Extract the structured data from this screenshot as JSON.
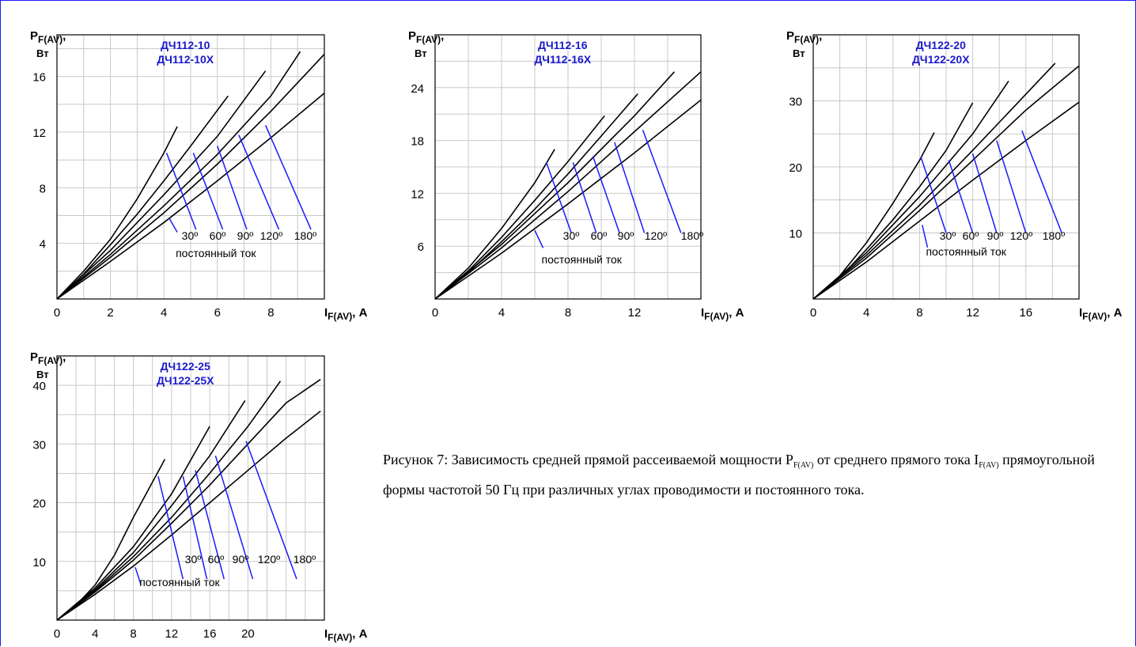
{
  "caption": {
    "text_1": "Рисунок 7: Зависимость средней прямой рассеиваемой мощности P",
    "sub_1": "F(AV)",
    "text_2": " от среднего прямого тока I",
    "sub_2": "F(AV)",
    "text_3": " прямоугольной формы частотой 50 Гц при различных углах проводимости и постоянного тока."
  },
  "chart_data": [
    {
      "type": "line",
      "title_lines": [
        "ДЧ112-10",
        "ДЧ112-10Х"
      ],
      "ylabel_main": "P",
      "ylabel_sub": "F(AV)",
      "ylabel_comma": ",",
      "ylabel_unit": "Вт",
      "xlabel_main": "I",
      "xlabel_sub": "F(AV)",
      "xlabel_unit": ", А",
      "xlim": [
        0,
        10
      ],
      "ylim": [
        0,
        19
      ],
      "xticks": [
        0,
        2,
        4,
        6,
        8
      ],
      "yticks": [
        4,
        8,
        12,
        16
      ],
      "grid": true,
      "angle_labels": [
        "30º",
        "60º",
        "90º",
        "120º",
        "180º"
      ],
      "dc_label": "постоянный ток",
      "series": [
        {
          "name": "30º",
          "x": [
            0,
            1,
            2,
            3,
            4,
            4.5
          ],
          "y": [
            0,
            2.0,
            4.3,
            7.2,
            10.5,
            12.4
          ]
        },
        {
          "name": "60º",
          "x": [
            0,
            1,
            2,
            3,
            4,
            5,
            6.4
          ],
          "y": [
            0,
            1.8,
            3.9,
            6.1,
            8.5,
            11.0,
            14.6
          ]
        },
        {
          "name": "90º",
          "x": [
            0,
            2,
            4,
            6,
            7.8
          ],
          "y": [
            0,
            3.5,
            7.5,
            11.7,
            16.4
          ]
        },
        {
          "name": "120º",
          "x": [
            0,
            2,
            4,
            6,
            8,
            9.1
          ],
          "y": [
            0,
            3.2,
            6.7,
            10.4,
            14.6,
            17.8
          ]
        },
        {
          "name": "180º",
          "x": [
            0,
            2,
            4,
            6,
            8,
            10
          ],
          "y": [
            0,
            3.0,
            6.2,
            9.7,
            13.5,
            17.6
          ]
        },
        {
          "name": "постоянный ток",
          "x": [
            0,
            2,
            4,
            6,
            8,
            10
          ],
          "y": [
            0,
            2.7,
            5.5,
            8.5,
            11.6,
            14.8
          ]
        }
      ],
      "pointers": [
        {
          "from": [
            4.1,
            10.5
          ],
          "to": [
            5.2,
            5.0
          ]
        },
        {
          "from": [
            5.1,
            10.5
          ],
          "to": [
            6.2,
            5.0
          ]
        },
        {
          "from": [
            6.0,
            11.0
          ],
          "to": [
            7.1,
            5.0
          ]
        },
        {
          "from": [
            6.8,
            11.8
          ],
          "to": [
            8.3,
            5.0
          ]
        },
        {
          "from": [
            7.8,
            12.5
          ],
          "to": [
            9.5,
            5.0
          ]
        },
        {
          "from": [
            4.2,
            5.8
          ],
          "to": [
            4.5,
            4.8
          ]
        }
      ]
    },
    {
      "type": "line",
      "title_lines": [
        "ДЧ112-16",
        "ДЧ112-16Х"
      ],
      "ylabel_main": "P",
      "ylabel_sub": "F(AV)",
      "ylabel_comma": ",",
      "ylabel_unit": "Вт",
      "xlabel_main": "I",
      "xlabel_sub": "F(AV)",
      "xlabel_unit": ", А",
      "xlim": [
        0,
        16
      ],
      "ylim": [
        0,
        30
      ],
      "xticks": [
        0,
        4,
        8,
        12
      ],
      "yticks": [
        6,
        12,
        18,
        24
      ],
      "grid": true,
      "angle_labels": [
        "30º",
        "60º",
        "90º",
        "120º",
        "180º"
      ],
      "dc_label": "постоянный ток",
      "series": [
        {
          "name": "30º",
          "x": [
            0,
            2,
            4,
            6,
            7.2
          ],
          "y": [
            0,
            3.5,
            8.0,
            13.2,
            17.0
          ]
        },
        {
          "name": "60º",
          "x": [
            0,
            2,
            4,
            6,
            8,
            10.2
          ],
          "y": [
            0,
            3.2,
            7.0,
            11.2,
            15.6,
            20.8
          ]
        },
        {
          "name": "90º",
          "x": [
            0,
            2,
            4,
            6,
            8,
            10,
            12.2
          ],
          "y": [
            0,
            3.0,
            6.5,
            10.2,
            14.2,
            18.5,
            23.3
          ]
        },
        {
          "name": "120º",
          "x": [
            0,
            4,
            8,
            12,
            14.4
          ],
          "y": [
            0,
            6.2,
            13.2,
            20.8,
            25.8
          ]
        },
        {
          "name": "180º",
          "x": [
            0,
            4,
            8,
            12,
            16
          ],
          "y": [
            0,
            5.8,
            12.2,
            19.0,
            25.8
          ]
        },
        {
          "name": "постоянный ток",
          "x": [
            0,
            4,
            8,
            12,
            16
          ],
          "y": [
            0,
            5.2,
            10.8,
            16.6,
            22.6
          ]
        }
      ],
      "pointers": [
        {
          "from": [
            6.7,
            15.5
          ],
          "to": [
            8.2,
            7.5
          ]
        },
        {
          "from": [
            8.3,
            15.5
          ],
          "to": [
            9.7,
            7.5
          ]
        },
        {
          "from": [
            9.5,
            16.2
          ],
          "to": [
            11.1,
            7.5
          ]
        },
        {
          "from": [
            10.8,
            17.8
          ],
          "to": [
            12.6,
            7.5
          ]
        },
        {
          "from": [
            12.5,
            19.2
          ],
          "to": [
            14.8,
            7.5
          ]
        },
        {
          "from": [
            6.0,
            7.8
          ],
          "to": [
            6.5,
            5.8
          ]
        }
      ]
    },
    {
      "type": "line",
      "title_lines": [
        "ДЧ122-20",
        "ДЧ122-20Х"
      ],
      "ylabel_main": "P",
      "ylabel_sub": "F(AV)",
      "ylabel_comma": ",",
      "ylabel_unit": "Вт",
      "xlabel_main": "I",
      "xlabel_sub": "F(AV)",
      "xlabel_unit": ", А",
      "xlim": [
        0,
        20
      ],
      "ylim": [
        0,
        40
      ],
      "xticks": [
        0,
        4,
        8,
        12,
        16
      ],
      "yticks": [
        10,
        20,
        30
      ],
      "grid": true,
      "angle_labels": [
        "30º",
        "60º",
        "90º",
        "120º",
        "180º"
      ],
      "dc_label": "постоянный ток",
      "series": [
        {
          "name": "30º",
          "x": [
            0,
            2,
            4,
            6,
            8,
            9.1
          ],
          "y": [
            0,
            3.5,
            8.5,
            14.5,
            21.0,
            25.2
          ]
        },
        {
          "name": "60º",
          "x": [
            0,
            2,
            4,
            6,
            8,
            10,
            12
          ],
          "y": [
            0,
            3.2,
            7.5,
            12.0,
            17.0,
            22.5,
            29.7
          ]
        },
        {
          "name": "90º",
          "x": [
            0,
            4,
            8,
            12,
            14.7
          ],
          "y": [
            0,
            7.0,
            15.5,
            25.0,
            33.0
          ]
        },
        {
          "name": "120º",
          "x": [
            0,
            4,
            8,
            12,
            16,
            18.2
          ],
          "y": [
            0,
            6.6,
            14.2,
            22.5,
            31.0,
            35.7
          ]
        },
        {
          "name": "180º",
          "x": [
            0,
            4,
            8,
            12,
            16,
            20
          ],
          "y": [
            0,
            6.2,
            13.4,
            21.0,
            28.6,
            35.3
          ]
        },
        {
          "name": "постоянный ток",
          "x": [
            0,
            4,
            8,
            12,
            16,
            20
          ],
          "y": [
            0,
            5.6,
            11.8,
            18.0,
            24.0,
            29.8
          ]
        }
      ],
      "pointers": [
        {
          "from": [
            8.1,
            21.5
          ],
          "to": [
            10.0,
            10.0
          ]
        },
        {
          "from": [
            10.2,
            21.0
          ],
          "to": [
            12.0,
            10.0
          ]
        },
        {
          "from": [
            12.0,
            22.0
          ],
          "to": [
            13.8,
            10.0
          ]
        },
        {
          "from": [
            13.8,
            24.0
          ],
          "to": [
            16.0,
            10.0
          ]
        },
        {
          "from": [
            15.7,
            25.5
          ],
          "to": [
            18.7,
            10.0
          ]
        },
        {
          "from": [
            8.2,
            11.2
          ],
          "to": [
            8.6,
            7.8
          ]
        }
      ]
    },
    {
      "type": "line",
      "title_lines": [
        "ДЧ122-25",
        "ДЧ122-25Х"
      ],
      "ylabel_main": "P",
      "ylabel_sub": "F(AV)",
      "ylabel_comma": ",",
      "ylabel_unit": "Вт",
      "xlabel_main": "I",
      "xlabel_sub": "F(AV)",
      "xlabel_unit": ", А",
      "xlim": [
        0,
        28
      ],
      "ylim": [
        0,
        45
      ],
      "xticks": [
        0,
        4,
        8,
        12,
        16,
        20
      ],
      "yticks": [
        10,
        20,
        30,
        40
      ],
      "grid": true,
      "angle_labels": [
        "30º",
        "60º",
        "90º",
        "120º",
        "180º"
      ],
      "dc_label": "постоянный ток",
      "series": [
        {
          "name": "30º",
          "x": [
            0,
            2,
            4,
            6,
            8,
            10,
            11.3
          ],
          "y": [
            0,
            2.5,
            6.0,
            11.0,
            17.5,
            23.5,
            27.4
          ]
        },
        {
          "name": "60º",
          "x": [
            0,
            4,
            8,
            12,
            16
          ],
          "y": [
            0,
            5.5,
            12.5,
            21.5,
            33.0
          ]
        },
        {
          "name": "90º",
          "x": [
            0,
            4,
            8,
            12,
            16,
            19.7
          ],
          "y": [
            0,
            5.2,
            11.5,
            19.5,
            28.0,
            37.4
          ]
        },
        {
          "name": "120º",
          "x": [
            0,
            4,
            8,
            12,
            16,
            20,
            23.4
          ],
          "y": [
            0,
            5.0,
            10.8,
            17.5,
            25.0,
            33.0,
            40.7
          ]
        },
        {
          "name": "180º",
          "x": [
            0,
            4,
            8,
            12,
            16,
            20,
            24,
            27.6
          ],
          "y": [
            0,
            4.8,
            10.2,
            16.5,
            23.0,
            30.0,
            37.0,
            41.0
          ]
        },
        {
          "name": "постоянный ток",
          "x": [
            0,
            4,
            8,
            12,
            16,
            20,
            24,
            27.6
          ],
          "y": [
            0,
            4.4,
            9.2,
            14.5,
            20.0,
            25.5,
            31.0,
            35.6
          ]
        }
      ],
      "pointers": [
        {
          "from": [
            10.6,
            24.5
          ],
          "to": [
            13.2,
            7.0
          ]
        },
        {
          "from": [
            13.2,
            24.5
          ],
          "to": [
            15.7,
            7.0
          ]
        },
        {
          "from": [
            14.5,
            25.5
          ],
          "to": [
            17.5,
            7.0
          ]
        },
        {
          "from": [
            16.6,
            28.0
          ],
          "to": [
            20.5,
            7.0
          ]
        },
        {
          "from": [
            19.8,
            30.5
          ],
          "to": [
            25.1,
            7.0
          ]
        },
        {
          "from": [
            8.2,
            9.0
          ],
          "to": [
            8.8,
            6.0
          ]
        }
      ]
    }
  ]
}
